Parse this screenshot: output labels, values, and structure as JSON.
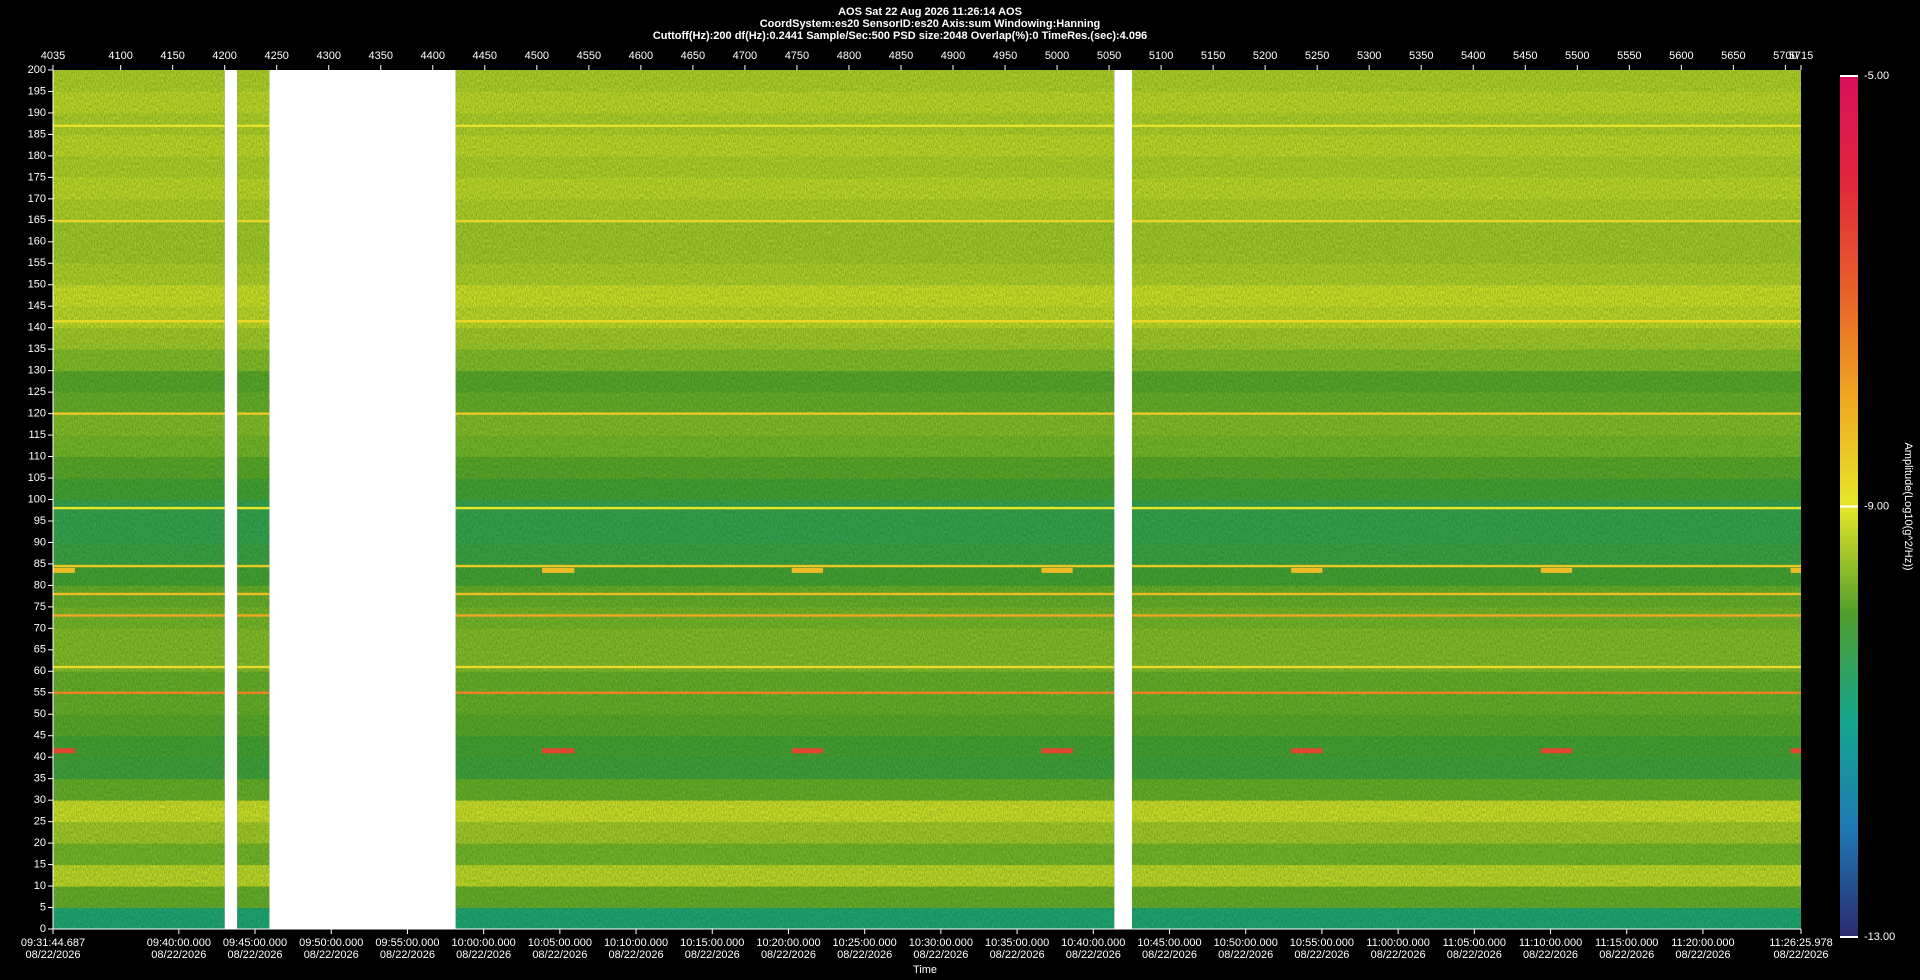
{
  "chart_data": {
    "type": "spectrogram",
    "title": "AOS  Sat 22 Aug 2026 11:26:14  AOS",
    "subtitle": "CoordSystem:es20   SensorID:es20   Axis:sum   Windowing:Hanning",
    "settings_line": "Cuttoff(Hz):200      df(Hz):0.2441      Sample/Sec:500      PSD size:2048      Overlap(%):0      TimeRes.(sec):4.096",
    "xlabel": "Time",
    "xtick_date": "08/22/2026",
    "x2lim": [
      4035,
      5715
    ],
    "x2ticks": [
      4035,
      4100,
      4150,
      4200,
      4250,
      4300,
      4350,
      4400,
      4450,
      4500,
      4550,
      4600,
      4650,
      4700,
      4750,
      4800,
      4850,
      4900,
      4950,
      5000,
      5050,
      5100,
      5150,
      5200,
      5250,
      5300,
      5350,
      5400,
      5450,
      5500,
      5550,
      5600,
      5650,
      5700,
      5715
    ],
    "xticks": [
      {
        "value": 4035,
        "label": "09:31:44.687"
      },
      {
        "value": 4155.93,
        "label": "09:40:00.000"
      },
      {
        "value": 4229.17,
        "label": "09:45:00.000"
      },
      {
        "value": 4302.41,
        "label": "09:50:00.000"
      },
      {
        "value": 4375.65,
        "label": "09:55:00.000"
      },
      {
        "value": 4448.89,
        "label": "10:00:00.000"
      },
      {
        "value": 4522.14,
        "label": "10:05:00.000"
      },
      {
        "value": 4595.38,
        "label": "10:10:00.000"
      },
      {
        "value": 4668.62,
        "label": "10:15:00.000"
      },
      {
        "value": 4741.86,
        "label": "10:20:00.000"
      },
      {
        "value": 4815.1,
        "label": "10:25:00.000"
      },
      {
        "value": 4888.34,
        "label": "10:30:00.000"
      },
      {
        "value": 4961.59,
        "label": "10:35:00.000"
      },
      {
        "value": 5034.83,
        "label": "10:40:00.000"
      },
      {
        "value": 5108.07,
        "label": "10:45:00.000"
      },
      {
        "value": 5181.31,
        "label": "10:50:00.000"
      },
      {
        "value": 5254.55,
        "label": "10:55:00.000"
      },
      {
        "value": 5327.8,
        "label": "11:00:00.000"
      },
      {
        "value": 5401.04,
        "label": "11:05:00.000"
      },
      {
        "value": 5474.28,
        "label": "11:10:00.000"
      },
      {
        "value": 5547.52,
        "label": "11:15:00.000"
      },
      {
        "value": 5620.76,
        "label": "11:20:00.000"
      },
      {
        "value": 5715,
        "label": "11:26:25.978"
      }
    ],
    "ylim": [
      0,
      200
    ],
    "yticks": [
      0,
      5,
      10,
      15,
      20,
      25,
      30,
      35,
      40,
      45,
      50,
      55,
      60,
      65,
      70,
      75,
      80,
      85,
      90,
      95,
      100,
      105,
      110,
      115,
      120,
      125,
      130,
      135,
      140,
      145,
      150,
      155,
      160,
      165,
      170,
      175,
      180,
      185,
      190,
      195,
      200
    ],
    "freq_bins": [
      0,
      5,
      10,
      15,
      20,
      25,
      30,
      35,
      40,
      45,
      50,
      55,
      60,
      65,
      70,
      75,
      80,
      85,
      90,
      95,
      100,
      105,
      110,
      115,
      120,
      125,
      130,
      135,
      140,
      145,
      150,
      155,
      160,
      165,
      170,
      175,
      180,
      185,
      190,
      195,
      200
    ],
    "amplitude": [
      -10.8,
      -9.8,
      -9.2,
      -9.7,
      -9.4,
      -9.1,
      -9.8,
      -10.2,
      -10.1,
      -9.9,
      -9.8,
      -9.8,
      -9.6,
      -9.6,
      -9.7,
      -9.8,
      -10.1,
      -10.3,
      -10.4,
      -10.4,
      -10.1,
      -9.9,
      -9.7,
      -9.6,
      -9.8,
      -9.9,
      -9.6,
      -9.4,
      -9.2,
      -9.1,
      -9.3,
      -9.4,
      -9.4,
      -9.3,
      -9.2,
      -9.3,
      -9.2,
      -9.3,
      -9.2,
      -9.3
    ],
    "line_freqs": [
      55,
      61,
      73,
      78,
      84.5,
      98,
      120,
      141.5,
      164.8,
      187
    ],
    "line_amplitudes": [
      -7.5,
      -8.8,
      -8,
      -8.3,
      -8.5,
      -9,
      -8.5,
      -8.8,
      -8.7,
      -8.9
    ],
    "gaps": [
      [
        4200,
        4212
      ],
      [
        4243,
        4422
      ],
      [
        5055,
        5072
      ]
    ],
    "pulse_freqs": [
      41.5,
      83.5
    ],
    "pulse_amplitudes": [
      -6.5,
      -8.3
    ],
    "pulse_x": [
      [
        4035,
        4056
      ],
      [
        4505,
        4536
      ],
      [
        4745,
        4775
      ],
      [
        4985,
        5015
      ],
      [
        5225,
        5255
      ],
      [
        5465,
        5495
      ],
      [
        5705,
        5715
      ]
    ],
    "colorbar": {
      "label": "Amplitude(Log10(g^2/Hz))",
      "lim": [
        -13,
        -5
      ],
      "ticks": [
        {
          "value": -5,
          "label": "-5.00"
        },
        {
          "value": -9,
          "label": "-9.00"
        },
        {
          "value": -13,
          "label": "-13.00"
        }
      ],
      "colormap": [
        "#2a2a6e",
        "#1f78b4",
        "#15a58e",
        "#4f9e2c",
        "#e6e62a",
        "#f0a822",
        "#e8602a",
        "#e0283a",
        "#d8105a"
      ]
    }
  }
}
